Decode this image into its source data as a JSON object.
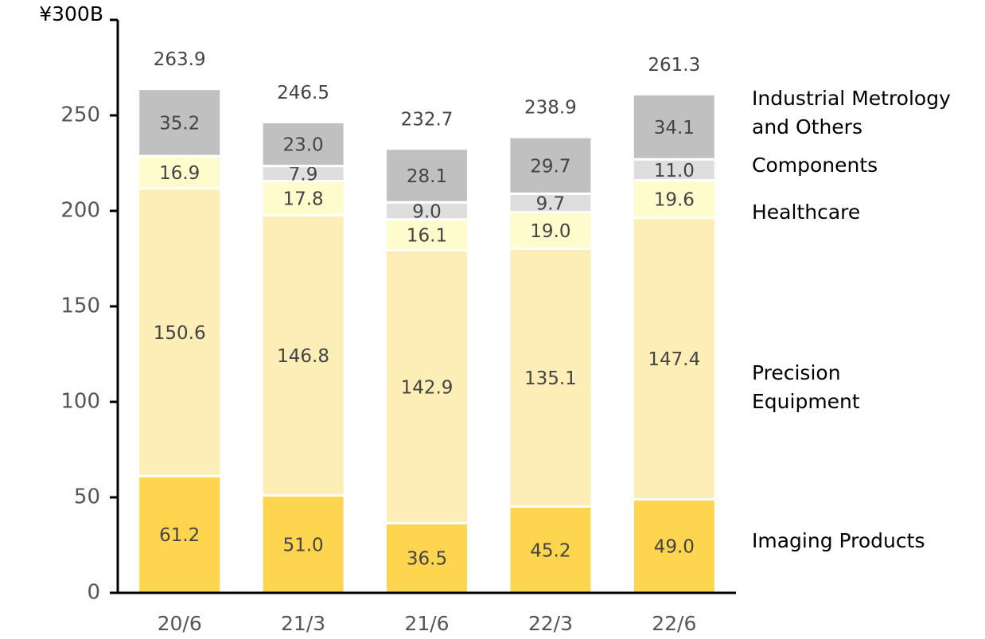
{
  "chart_data": {
    "type": "bar",
    "stacked": true,
    "categories": [
      "20/6",
      "21/3",
      "21/6",
      "22/3",
      "22/6"
    ],
    "series": [
      {
        "name": "Imaging Products",
        "color": "#fdd54f",
        "values": [
          61.2,
          51.0,
          36.5,
          45.2,
          49.0
        ],
        "value_labels": [
          "61.2",
          "51.0",
          "36.5",
          "45.2",
          "49.0"
        ]
      },
      {
        "name": "Precision Equipment",
        "color": "#fdedb6",
        "values": [
          150.6,
          146.8,
          142.9,
          135.1,
          147.4
        ],
        "value_labels": [
          "150.6",
          "146.8",
          "142.9",
          "135.1",
          "147.4"
        ]
      },
      {
        "name": "Healthcare",
        "color": "#fefbcc",
        "values": [
          16.9,
          17.8,
          16.1,
          19.0,
          19.6
        ],
        "value_labels": [
          "16.9",
          "17.8",
          "16.1",
          "19.0",
          "19.6"
        ]
      },
      {
        "name": "Components",
        "color": "#dedede",
        "values": [
          null,
          7.9,
          9.0,
          9.7,
          11.0
        ],
        "value_labels": [
          null,
          "7.9",
          "9.0",
          "9.7",
          "11.0"
        ]
      },
      {
        "name": "Industrial Metrology and Others",
        "color": "#c0c0c0",
        "values": [
          35.2,
          23.0,
          28.1,
          29.7,
          34.1
        ],
        "value_labels": [
          "35.2",
          "23.0",
          "28.1",
          "29.7",
          "34.1"
        ]
      }
    ],
    "totals": [
      263.9,
      246.5,
      232.7,
      238.9,
      261.3
    ],
    "ylim": [
      0,
      300
    ],
    "yticks": [
      0,
      50,
      100,
      150,
      200,
      250,
      {
        "value": 300,
        "label": "¥300B"
      }
    ]
  }
}
